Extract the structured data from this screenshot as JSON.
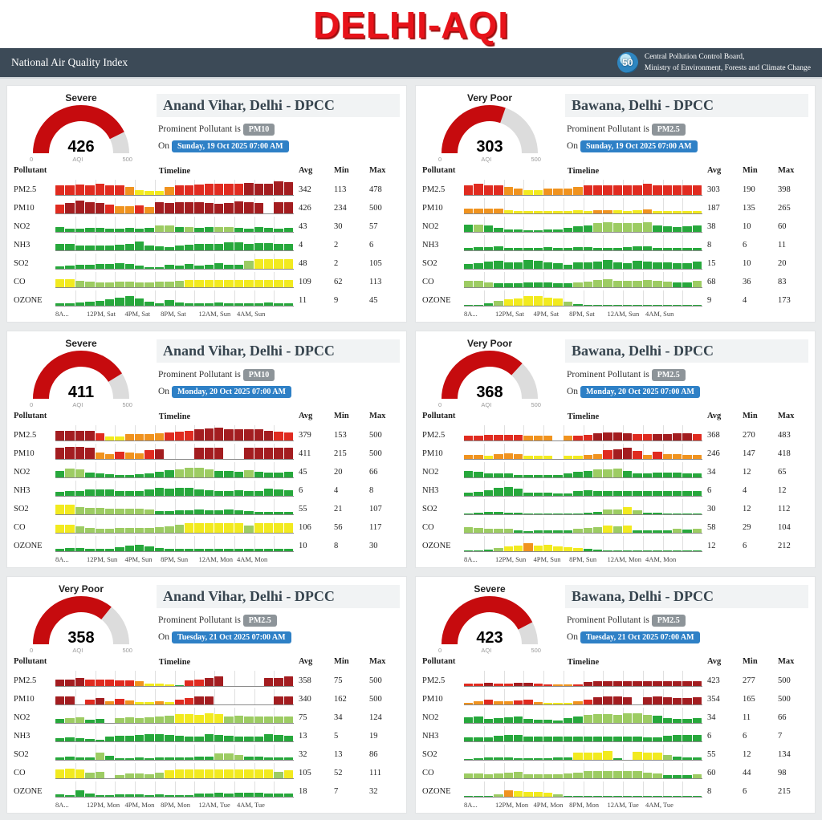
{
  "page_title": "DELHI-AQI",
  "navbar": {
    "title": "National Air Quality Index",
    "logo_text": "50",
    "org_line1": "Central Pollution Control Board,",
    "org_line2": "Ministry of Environment, Forests and Climate Change"
  },
  "labels": {
    "prominent": "Prominent Pollutant is",
    "on": "On"
  },
  "gauge_labels": {
    "min": "0",
    "mid": "AQI",
    "max": "500"
  },
  "table_headers": {
    "pollutant": "Pollutant",
    "timeline": "Timeline",
    "avg": "Avg",
    "min": "Min",
    "max": "Max"
  },
  "colors": {
    "R": "#e02b20",
    "D": "#a31d20",
    "O": "#f0931f",
    "Y": "#f2ea1f",
    "L": "#9dcc63",
    "G": "#27a83c",
    "gauge_fill": "#c60b0e",
    "gauge_track": "#dcdcdc",
    "accent_red": "#e8131a",
    "navy": "#3c4a57",
    "badge_gray": "#8d9499",
    "badge_blue": "#2e80c6"
  },
  "cards": [
    {
      "station": "Anand Vihar, Delhi - DPCC",
      "category": "Severe",
      "aqi": 426,
      "scale_max": 500,
      "pollutant": "PM10",
      "datetime": "Sunday, 19 Oct 2025 07:00 AM",
      "axis": [
        "8A...",
        "12PM, Sat",
        "4PM, Sat",
        "8PM, Sat",
        "12AM, Sun",
        "4AM, Sun"
      ],
      "rows": [
        {
          "name": "PM2.5",
          "avg": 342,
          "min": 113,
          "max": 478,
          "bars": "R60 R60 R65 R60 R70 R60 R62 O48 Y30 Y26 Y26 O50 R60 R60 R65 R68 R68 R72 R68 D75 D72 D72 D85 D80"
        },
        {
          "name": "PM10",
          "avg": 426,
          "min": 234,
          "max": 500,
          "bars": "R55 D65 D78 D70 D65 R55 O45 O45 R50 O40 D70 D65 D70 D70 D70 D65 D60 D65 D75 D70 D65 . D70 D70"
        },
        {
          "name": "NO2",
          "avg": 43,
          "min": 30,
          "max": 57,
          "bars": "G28 G22 G22 G26 G26 G22 G22 G26 G22 G26 L38 L38 G32 L32 G26 G30 L32 L32 G26 G22 G32 G26 G22 G26"
        },
        {
          "name": "NH3",
          "avg": 4,
          "min": 2,
          "max": 6,
          "bars": "G38 G38 G32 G32 G32 G32 G36 G42 G55 G32 G26 G20 G32 G36 G38 G38 G38 G52 G52 G38 G46 G46 G42 G38"
        },
        {
          "name": "SO2",
          "avg": 48,
          "min": 2,
          "max": 105,
          "bars": "G16 G20 G26 G26 G30 G30 G36 G30 G20 G10 G10 G26 G20 G30 G20 G26 G36 G26 G26 L48 Y62 Y62 Y62 Y62"
        },
        {
          "name": "CO",
          "avg": 109,
          "min": 62,
          "max": 113,
          "bars": "Y48 Y48 L42 L36 L30 L30 L36 L36 L30 L30 L36 L36 L42 Y46 Y46 Y46 Y46 Y46 Y46 Y46 Y46 Y46 Y46 Y46"
        },
        {
          "name": "OZONE",
          "avg": 11,
          "min": 9,
          "max": 45,
          "bars": "G16 G16 G20 G26 G32 G42 G52 G58 G46 G26 G16 G36 G20 G16 G16 G16 G20 G16 G16 G16 G16 G20 G16 G16"
        }
      ]
    },
    {
      "station": "Bawana, Delhi - DPCC",
      "category": "Very Poor",
      "aqi": 303,
      "scale_max": 500,
      "pollutant": "PM2.5",
      "datetime": "Sunday, 19 Oct 2025 07:00 AM",
      "axis": [
        "8A...",
        "12PM, Sat",
        "4PM, Sat",
        "8PM, Sat",
        "12AM, Sun",
        "4AM, Sun"
      ],
      "rows": [
        {
          "name": "PM2.5",
          "avg": 303,
          "min": 190,
          "max": 398,
          "bars": "R58 R68 R62 R58 O48 O42 Y32 Y32 O42 O42 O38 O48 R58 R62 R58 R62 R58 R62 R68 R62 R62 R58 R58 R62"
        },
        {
          "name": "PM10",
          "avg": 187,
          "min": 135,
          "max": 265,
          "bars": "O32 O32 O32 O28 Y18 Y16 Y14 Y14 Y14 Y14 Y16 Y22 Y16 O22 O22 Y22 Y16 Y22 O26 Y16 Y14 Y14 Y14 Y16"
        },
        {
          "name": "NO2",
          "avg": 38,
          "min": 10,
          "max": 60,
          "bars": "G46 L46 G42 G26 G16 G14 G12 G12 G14 G16 G26 G36 G42 L56 L62 L56 L56 L56 L62 G42 G36 G32 G36 G42"
        },
        {
          "name": "NH3",
          "avg": 8,
          "min": 6,
          "max": 11,
          "bars": "G16 G22 G22 G26 G16 G14 G14 G16 G22 G16 G16 G22 G22 G16 G14 G16 G22 G26 G26 G16 G16 G16 G14 G14"
        },
        {
          "name": "SO2",
          "avg": 15,
          "min": 10,
          "max": 20,
          "bars": "G32 G36 G46 G52 G42 G42 G56 G52 G42 G36 G26 G42 G42 G46 G56 G42 G36 G52 G46 G42 G42 G36 G36 G46"
        },
        {
          "name": "CO",
          "avg": 68,
          "min": 36,
          "max": 83,
          "bars": "L42 L42 L32 G26 G26 G26 G32 G32 G32 G26 G26 L32 L36 L46 L52 L42 L42 L42 L46 L42 L36 G32 G32 L42"
        },
        {
          "name": "OZONE",
          "avg": 9,
          "min": 4,
          "max": 173,
          "bars": "G6 G6 G16 L32 Y42 Y46 Y58 Y58 Y52 Y46 L26 G12 G6 G4 G4 G4 G4 G4 G4 G4 G4 G4 G4 G4"
        }
      ]
    },
    {
      "station": "Anand Vihar, Delhi - DPCC",
      "category": "Severe",
      "aqi": 411,
      "scale_max": 500,
      "pollutant": "PM10",
      "datetime": "Monday, 20 Oct 2025 07:00 AM",
      "axis": [
        "8A...",
        "12PM, Sun",
        "4PM, Sun",
        "8PM, Sun",
        "12AM, Mon",
        "4AM, Mon"
      ],
      "rows": [
        {
          "name": "PM2.5",
          "avg": 379,
          "min": 153,
          "max": 500,
          "bars": "D62 D62 D62 D62 R46 Y26 Y26 O42 O42 O42 O46 R52 R56 R62 D68 D75 D78 D72 D72 D72 D68 D62 R56 R52"
        },
        {
          "name": "PM10",
          "avg": 411,
          "min": 215,
          "max": 500,
          "bars": "D68 D75 D75 D72 O42 O32 R46 O42 O36 R56 D62 . . . D72 D72 D72 . . D72 D72 D72 D72 D72"
        },
        {
          "name": "NO2",
          "avg": 45,
          "min": 20,
          "max": 66,
          "bars": "G42 L56 L52 G32 G26 G22 G16 G16 G22 G26 G36 G46 L52 L58 L58 L52 G42 G42 G36 L46 G36 G32 G32 G36"
        },
        {
          "name": "NH3",
          "avg": 6,
          "min": 4,
          "max": 8,
          "bars": "G26 G32 G32 G42 G42 G42 G32 G32 G32 G42 G52 G46 G52 G52 G42 G36 G32 G32 G36 G32 G32 G46 G42 G36"
        },
        {
          "name": "SO2",
          "avg": 55,
          "min": 21,
          "max": 107,
          "bars": "Y58 Y58 L46 L42 L42 L36 L36 L36 L36 L32 G22 G22 G26 G26 G32 G26 G26 G32 G26 G22 G16 G16 G16 G16"
        },
        {
          "name": "CO",
          "avg": 106,
          "min": 56,
          "max": 117,
          "bars": "Y52 Y52 L42 L32 L26 L26 L32 L32 L32 L32 L36 L42 L52 Y58 Y62 Y62 Y62 Y58 Y58 L46 Y58 Y58 Y58 Y58"
        },
        {
          "name": "OZONE",
          "avg": 10,
          "min": 8,
          "max": 30,
          "bars": "G16 G22 G20 G16 G13 G16 G26 G36 G42 G32 G20 G13 G13 G13 G16 G13 G16 G13 G13 G16 G16 G16 G13 G13"
        }
      ]
    },
    {
      "station": "Bawana, Delhi - DPCC",
      "category": "Very Poor",
      "aqi": 368,
      "scale_max": 500,
      "pollutant": "PM2.5",
      "datetime": "Monday, 20 Oct 2025 07:00 AM",
      "axis": [
        "8A...",
        "12PM, Sun",
        "4PM, Sun",
        "8PM, Sun",
        "12AM, Mon",
        "4AM, Mon"
      ],
      "rows": [
        {
          "name": "PM2.5",
          "avg": 368,
          "min": 270,
          "max": 483,
          "bars": "R32 R32 R36 R36 R36 R36 O32 O32 O32 . O32 R32 R36 D46 D52 D52 D46 R42 R42 D42 D42 D46 D46 R42"
        },
        {
          "name": "PM10",
          "avg": 246,
          "min": 147,
          "max": 418,
          "bars": "O26 O26 Y20 O32 O36 O32 Y18 Y18 Y18 . Y18 Y20 O26 O32 R56 D62 D68 R52 O26 R46 O32 O32 O26 O26"
        },
        {
          "name": "NO2",
          "avg": 34,
          "min": 12,
          "max": 65,
          "bars": "G42 G36 G26 G26 G26 G16 G13 G13 G16 G16 G26 G36 G42 L52 L52 L56 G42 G26 G26 G30 G32 G30 G26 G23"
        },
        {
          "name": "NH3",
          "avg": 6,
          "min": 4,
          "max": 12,
          "bars": "G22 G26 G36 G52 G56 G46 G22 G18 G18 G16 G16 G32 G36 G32 G32 G32 G32 G32 G32 G32 G32 G32 G32 G32"
        },
        {
          "name": "SO2",
          "avg": 30,
          "min": 12,
          "max": 112,
          "bars": "G4 G10 G13 G13 G10 G8 G6 G6 G6 G6 G6 G6 G8 G16 L32 L32 Y46 L26 G10 G8 G6 G6 G4 G4"
        },
        {
          "name": "CO",
          "avg": 58,
          "min": 29,
          "max": 104,
          "bars": "L36 L32 L26 L26 L26 G16 G10 G16 G16 G13 G16 L26 L32 L36 Y46 L42 Y46 G16 G16 G16 G16 L26 G18 L26"
        },
        {
          "name": "OZONE",
          "avg": 12,
          "min": 6,
          "max": 212,
          "bars": "G4 G4 G10 L22 Y32 Y36 O52 Y36 Y40 Y32 Y26 Y20 G13 G8 G6 G4 G4 G4 G4 G4 G4 G4 G4 G4"
        }
      ]
    },
    {
      "station": "Anand Vihar, Delhi - DPCC",
      "category": "Very Poor",
      "aqi": 358,
      "scale_max": 500,
      "pollutant": "PM2.5",
      "datetime": "Tuesday, 21 Oct 2025 07:00 AM",
      "axis": [
        "8A...",
        "12PM, Mon",
        "4PM, Mon",
        "8PM, Mon",
        "12AM, Tue",
        "4AM, Tue"
      ],
      "rows": [
        {
          "name": "PM2.5",
          "avg": 358,
          "min": 75,
          "max": 500,
          "bars": "D42 D42 D48 R42 R42 R40 R36 R36 O28 Y16 Y16 Y12 G6 R36 R42 D48 D58 . . . . D52 D52 D58"
        },
        {
          "name": "PM10",
          "avg": 340,
          "min": 162,
          "max": 500,
          "bars": "D48 D48 . R32 D42 O22 R36 O26 Y16 Y13 O22 Y13 R32 R40 D48 D52 . . . . . . D48 D48"
        },
        {
          "name": "NO2",
          "avg": 75,
          "min": 34,
          "max": 124,
          "bars": "G26 L32 L36 G22 G23 . L32 L36 L32 L36 L42 L46 Y56 Y56 Y52 Y62 Y56 L42 L46 L40 L40 L40 L42 L40"
        },
        {
          "name": "NH3",
          "avg": 13,
          "min": 5,
          "max": 19,
          "bars": "G22 G26 G18 G13 G10 G32 G36 G36 G42 G46 G46 G42 G36 G32 G32 G46 G42 G36 G32 G30 G30 G46 G42 G36"
        },
        {
          "name": "SO2",
          "avg": 32,
          "min": 13,
          "max": 86,
          "bars": "G16 G18 G16 G16 L46 G26 G8 G10 G13 G10 G13 G16 G13 G16 G18 G20 L42 L42 L32 G18 G18 G16 G16 G13"
        },
        {
          "name": "CO",
          "avg": 105,
          "min": 52,
          "max": 111,
          "bars": "Y56 Y62 Y56 L36 L42 . L22 L32 L30 L26 L36 Y52 Y56 Y56 Y56 Y56 Y56 Y56 Y56 Y56 Y56 Y56 L42 Y52"
        },
        {
          "name": "OZONE",
          "avg": 18,
          "min": 7,
          "max": 32,
          "bars": "G16 G10 G42 G18 G8 G10 G13 G13 G13 G10 G13 G10 G10 G8 G20 G18 G23 G20 G26 G23 G23 G20 G18 G18"
        }
      ]
    },
    {
      "station": "Bawana, Delhi - DPCC",
      "category": "Severe",
      "aqi": 423,
      "scale_max": 500,
      "pollutant": "PM2.5",
      "datetime": "Tuesday, 21 Oct 2025 07:00 AM",
      "axis": [
        "8A...",
        "12PM, Mon",
        "4PM, Mon",
        "8PM, Mon",
        "12AM, Tue",
        "4AM, Tue"
      ],
      "rows": [
        {
          "name": "PM2.5",
          "avg": 423,
          "min": 277,
          "max": 500,
          "bars": "R14 R14 D22 R16 R16 D18 D20 R14 R12 O10 O12 R12 D26 D28 D28 D28 D28 D28 D28 D28 D28 D28 D28 D28"
        },
        {
          "name": "PM10",
          "avg": 354,
          "min": 165,
          "max": 500,
          "bars": "O12 O20 R32 O18 O18 R26 R28 O15 Y11 Y11 Y11 O18 R30 D46 D50 D50 D46 . D46 D50 D44 D42 D42 D46"
        },
        {
          "name": "NO2",
          "avg": 34,
          "min": 11,
          "max": 66,
          "bars": "G36 G40 G26 G32 G36 G40 G26 G20 G18 G16 G30 G42 L52 L54 L54 L52 L58 L62 L52 G44 G32 G26 G26 G30"
        },
        {
          "name": "NH3",
          "avg": 6,
          "min": 6,
          "max": 7,
          "bars": "G26 G23 G26 G36 G40 G40 G30 G30 G30 G30 G30 G30 G30 G30 G30 G30 G30 G30 G26 G23 G36 G40 G40 G40"
        },
        {
          "name": "SO2",
          "avg": 55,
          "min": 12,
          "max": 134,
          "bars": "G6 G8 G13 G13 G13 G10 G10 G10 G10 G13 G16 Y46 Y44 Y46 Y56 G8 . Y50 Y46 Y44 L30 G18 G13 G13"
        },
        {
          "name": "CO",
          "avg": 60,
          "min": 44,
          "max": 98,
          "bars": "L32 L32 L26 L30 L34 L40 L26 L23 L23 L26 L32 L36 L44 L46 L46 L46 L44 L46 L36 L30 G22 G20 G20 L26"
        },
        {
          "name": "OZONE",
          "avg": 8,
          "min": 6,
          "max": 215,
          "bars": "G4 G4 G4 L16 O42 Y34 Y32 Y30 Y26 L13 G6 G4 G4 G4 G4 G4 G4 G4 G4 G4 G4 G4 G4 G4"
        }
      ]
    }
  ]
}
